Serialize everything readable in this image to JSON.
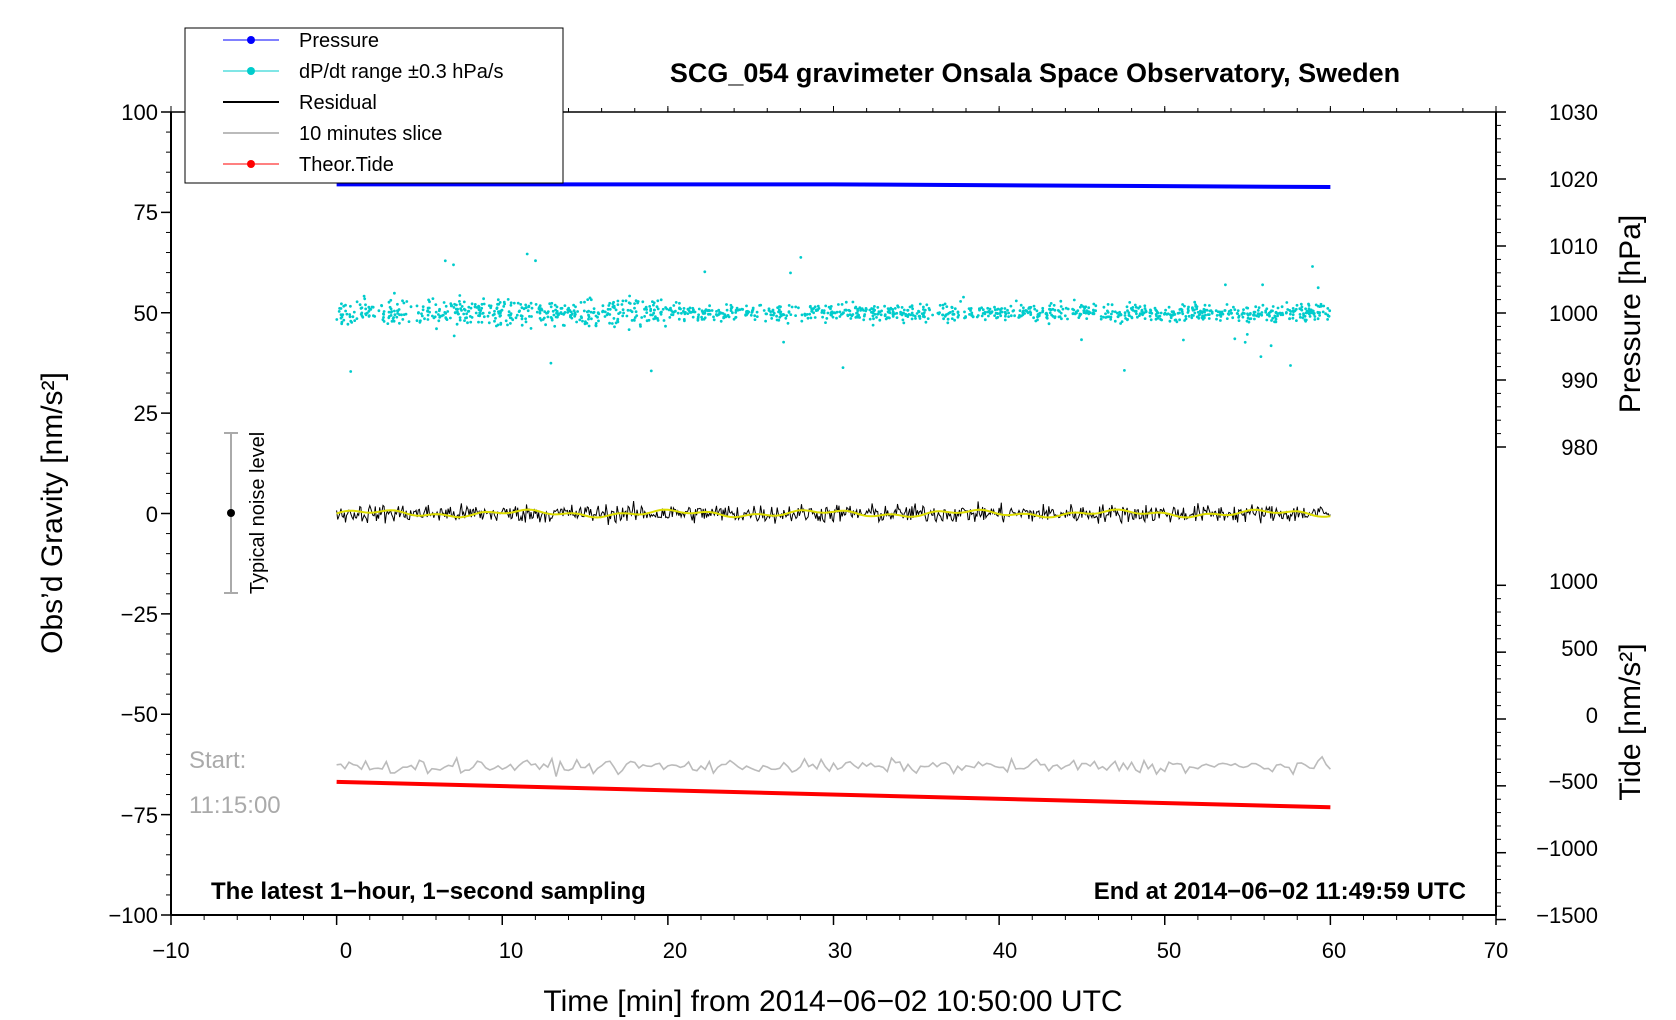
{
  "chart_data": {
    "type": "line",
    "title": "SCG_054 gravimeter Onsala Space Observatory, Sweden",
    "xlabel": "Time [min] from 2014−06−02 10:50:00 UTC",
    "ylabel_left": "Obs’d Gravity [nm/s²]",
    "ylabel_right_pressure": "Pressure [hPa]",
    "ylabel_right_tide": "Tide [nm/s²]",
    "xlim": [
      -10,
      70
    ],
    "ylim_left": [
      -100,
      100
    ],
    "x_ticks": [
      "−10",
      "0",
      "10",
      "20",
      "30",
      "40",
      "50",
      "60",
      "70"
    ],
    "y_ticks_left": [
      "100",
      "75",
      "50",
      "25",
      "0",
      "−25",
      "−50",
      "−75",
      "−100"
    ],
    "y_ticks_pressure": [
      "1030",
      "1020",
      "1010",
      "1000",
      "990",
      "980"
    ],
    "y_ticks_tide": [
      "1000",
      "500",
      "0",
      "−500",
      "−1000",
      "−1500"
    ],
    "grid": false,
    "legend_position": "top-left",
    "legend": [
      {
        "label": "Pressure",
        "color": "#0000ff",
        "marker": true
      },
      {
        "label": "dP/dt range ±0.3 hPa/s",
        "color": "#00cccc",
        "marker": true
      },
      {
        "label": "Residual",
        "color": "#000000",
        "marker": false
      },
      {
        "label": "10 minutes slice",
        "color": "#bbbbbb",
        "marker": false
      },
      {
        "label": "Theor.Tide",
        "color": "#ff0000",
        "marker": true
      }
    ],
    "series": [
      {
        "name": "Pressure",
        "axis": "pressure_hPa",
        "x": [
          0,
          30,
          60
        ],
        "values": [
          1019.2,
          1019.2,
          1018.8
        ]
      },
      {
        "name": "dP/dt range ±0.3 hPa/s",
        "axis": "gravity_nm_s2",
        "x": [
          0,
          60
        ],
        "values": [
          50,
          50
        ]
      },
      {
        "name": "Residual",
        "axis": "gravity_nm_s2",
        "x": [
          0,
          60
        ],
        "values": [
          0,
          0
        ]
      },
      {
        "name": "Theor.Tide",
        "axis": "tide_nm_s2",
        "x": [
          0,
          60
        ],
        "values": [
          -470,
          -660
        ]
      }
    ],
    "annotations": {
      "noise_label": "Typical noise level",
      "noise_range": [
        -20,
        20
      ],
      "start_label": "Start:",
      "start_time": "11:15:00",
      "bottom_left": "The latest 1−hour, 1−second sampling",
      "bottom_right": "End at 2014−06−02 11:49:59 UTC"
    }
  }
}
